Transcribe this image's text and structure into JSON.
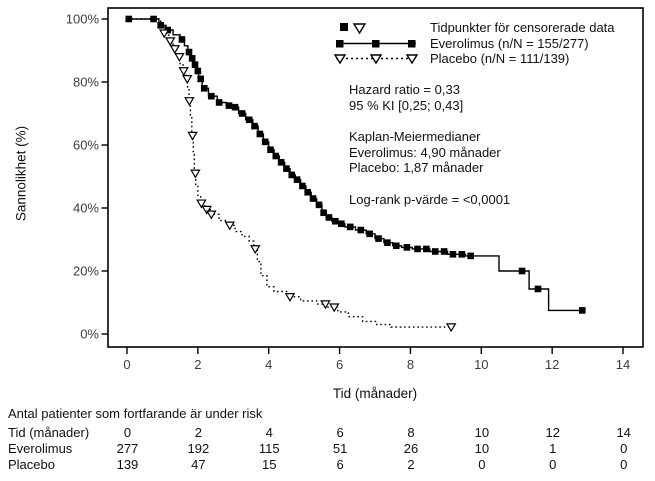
{
  "colors": {
    "curve": "#000000",
    "text": "#111111",
    "tick_text": "#3d3d3d",
    "background": "#ffffff"
  },
  "legend": {
    "censored_label": "Tidpunkter för censorerade data",
    "everolimus_label": "Everolimus (n/N = 155/277)",
    "placebo_label": "Placebo (n/N = 111/139)"
  },
  "annotations": {
    "hazard_ratio": "Hazard ratio = 0,33",
    "confidence_interval": "95 % KI [0,25; 0,43]",
    "medians_title": "Kaplan-Meiermedianer",
    "median_everolimus": "Everolimus: 4,90 månader",
    "median_placebo": "Placebo: 1,87 månader",
    "log_rank": "Log-rank p-värde = <0,0001"
  },
  "risk_table": {
    "title": "Antal patienter som fortfarande är under risk",
    "rows": [
      {
        "label": "Tid (månader)",
        "values": [
          "0",
          "2",
          "4",
          "6",
          "8",
          "10",
          "12",
          "14"
        ]
      },
      {
        "label": "Everolimus",
        "values": [
          "277",
          "192",
          "115",
          "51",
          "26",
          "10",
          "1",
          "0"
        ]
      },
      {
        "label": "Placebo",
        "values": [
          "139",
          "47",
          "15",
          "6",
          "2",
          "0",
          "0",
          "0"
        ]
      }
    ]
  },
  "chart_data": {
    "type": "line",
    "subtype": "kaplan-meier-step",
    "title": "",
    "xlabel": "Tid (månader)",
    "ylabel": "Sannolikhet (%)",
    "xlim": [
      0,
      14
    ],
    "ylim": [
      0,
      100
    ],
    "grid": false,
    "legend_position": "top-right-inside",
    "x_ticks": [
      0,
      2,
      4,
      6,
      8,
      10,
      12,
      14
    ],
    "y_ticks": [
      0,
      20,
      40,
      60,
      80,
      100
    ],
    "y_tick_labels": [
      "0%",
      "20%",
      "40%",
      "60%",
      "80%",
      "100%"
    ],
    "series": [
      {
        "id": "everolimus",
        "name": "Everolimus (n/N = 155/277)",
        "line_style": "solid",
        "marker": "filled-square",
        "steps": [
          [
            0,
            100
          ],
          [
            0.9,
            98
          ],
          [
            1.1,
            96.5
          ],
          [
            1.3,
            95
          ],
          [
            1.5,
            93.5
          ],
          [
            1.62,
            91.5
          ],
          [
            1.72,
            89.5
          ],
          [
            1.8,
            87.5
          ],
          [
            1.88,
            85.5
          ],
          [
            1.95,
            83.5
          ],
          [
            2.02,
            81
          ],
          [
            2.12,
            78
          ],
          [
            2.3,
            75.5
          ],
          [
            2.55,
            73.5
          ],
          [
            2.8,
            72.5
          ],
          [
            2.95,
            72
          ],
          [
            3.15,
            70
          ],
          [
            3.35,
            68
          ],
          [
            3.55,
            66
          ],
          [
            3.7,
            63.5
          ],
          [
            3.85,
            61
          ],
          [
            4.0,
            58.5
          ],
          [
            4.15,
            56.5
          ],
          [
            4.3,
            54.5
          ],
          [
            4.45,
            52.5
          ],
          [
            4.6,
            50.5
          ],
          [
            4.75,
            49
          ],
          [
            4.9,
            47
          ],
          [
            5.05,
            45
          ],
          [
            5.2,
            43
          ],
          [
            5.35,
            41
          ],
          [
            5.5,
            38.5
          ],
          [
            5.62,
            37
          ],
          [
            5.78,
            35.8
          ],
          [
            5.95,
            35
          ],
          [
            6.15,
            34
          ],
          [
            6.45,
            33
          ],
          [
            6.75,
            31.8
          ],
          [
            7.0,
            30.3
          ],
          [
            7.25,
            29
          ],
          [
            7.5,
            28
          ],
          [
            7.75,
            27.5
          ],
          [
            8.05,
            27
          ],
          [
            8.55,
            26.2
          ],
          [
            9.05,
            25.3
          ],
          [
            9.55,
            24.8
          ],
          [
            10.5,
            20
          ],
          [
            11.35,
            14.3
          ],
          [
            11.9,
            7.5
          ],
          [
            12.85,
            7.5
          ]
        ],
        "censor_times": [
          0.05,
          0.75,
          0.95,
          1.15,
          1.55,
          1.75,
          1.84,
          1.92,
          2.0,
          2.08,
          2.18,
          2.38,
          2.6,
          2.88,
          3.05,
          3.25,
          3.45,
          3.6,
          3.75,
          3.9,
          4.05,
          4.2,
          4.35,
          4.5,
          4.65,
          4.8,
          4.95,
          5.1,
          5.25,
          5.42,
          5.55,
          5.7,
          5.88,
          6.05,
          6.3,
          6.6,
          6.85,
          7.1,
          7.35,
          7.6,
          7.9,
          8.2,
          8.45,
          8.7,
          8.95,
          9.2,
          9.45,
          9.7,
          11.15,
          11.6,
          12.85
        ]
      },
      {
        "id": "placebo",
        "name": "Placebo (n/N = 111/139)",
        "line_style": "dotted",
        "marker": "open-triangle-down",
        "steps": [
          [
            0,
            100
          ],
          [
            0.95,
            97.5
          ],
          [
            1.05,
            95.5
          ],
          [
            1.18,
            93
          ],
          [
            1.3,
            90.5
          ],
          [
            1.4,
            88
          ],
          [
            1.5,
            85.5
          ],
          [
            1.58,
            83.5
          ],
          [
            1.66,
            81
          ],
          [
            1.71,
            78
          ],
          [
            1.75,
            74
          ],
          [
            1.79,
            69
          ],
          [
            1.83,
            63
          ],
          [
            1.87,
            57
          ],
          [
            1.9,
            51
          ],
          [
            1.94,
            47.5
          ],
          [
            2.0,
            44
          ],
          [
            2.08,
            41.5
          ],
          [
            2.2,
            39.5
          ],
          [
            2.35,
            38
          ],
          [
            2.6,
            36
          ],
          [
            2.85,
            34.5
          ],
          [
            3.05,
            32.5
          ],
          [
            3.25,
            31
          ],
          [
            3.45,
            29.5
          ],
          [
            3.58,
            27
          ],
          [
            3.68,
            23
          ],
          [
            3.78,
            18.5
          ],
          [
            3.95,
            15
          ],
          [
            4.15,
            13.5
          ],
          [
            4.55,
            11.8
          ],
          [
            4.9,
            10.5
          ],
          [
            5.35,
            9.5
          ],
          [
            5.65,
            8.5
          ],
          [
            5.95,
            7
          ],
          [
            6.25,
            5.5
          ],
          [
            6.65,
            4
          ],
          [
            7.05,
            3
          ],
          [
            7.45,
            2.2
          ],
          [
            9.15,
            2.2
          ]
        ],
        "censor_times": [
          1.05,
          1.22,
          1.35,
          1.48,
          1.6,
          1.7,
          1.76,
          1.85,
          1.93,
          2.1,
          2.25,
          2.38,
          2.9,
          3.62,
          4.6,
          5.6,
          5.85,
          9.15
        ]
      }
    ]
  }
}
